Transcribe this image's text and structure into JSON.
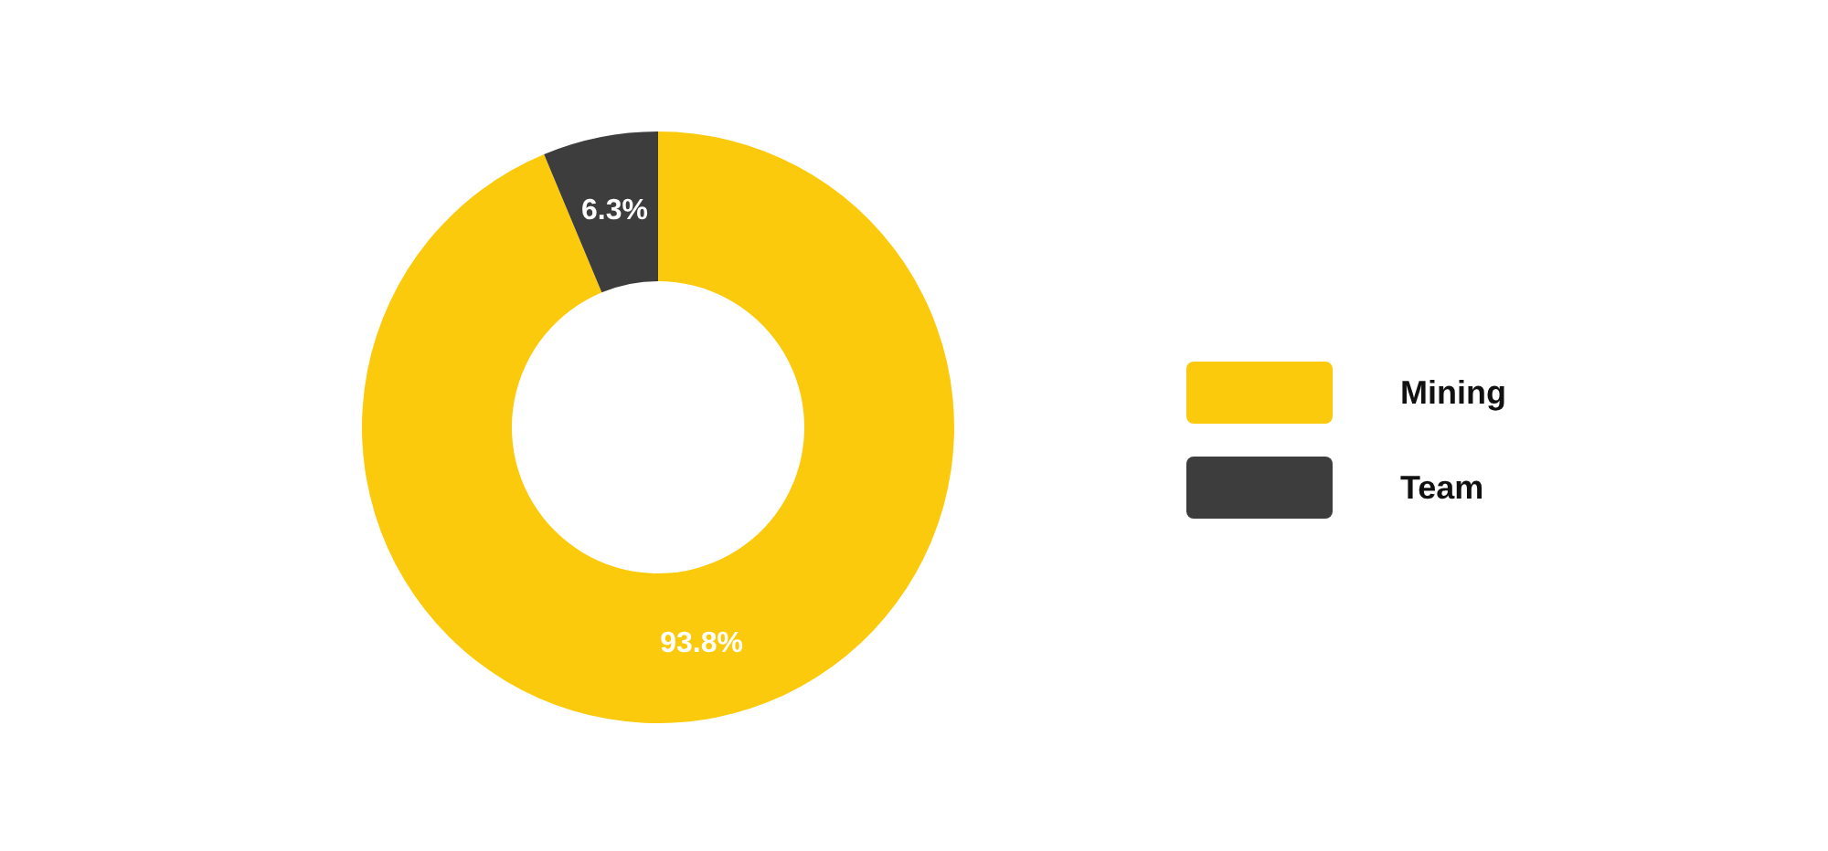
{
  "chart_data": {
    "type": "donut",
    "categories": [
      "Mining",
      "Team"
    ],
    "values": [
      93.8,
      6.3
    ],
    "colors": [
      "#fcca0c",
      "#3d3d3d"
    ],
    "value_labels": [
      "93.8%",
      "6.3%"
    ],
    "legend": "right"
  }
}
